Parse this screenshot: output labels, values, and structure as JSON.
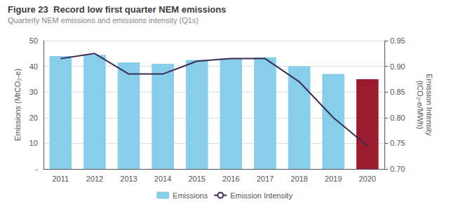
{
  "chart_data": {
    "type": "bar",
    "title": "Figure 23  Record low first quarter NEM emissions",
    "subtitle": "Quarterly NEM emissions and emissions intensity (Q1s)",
    "categories": [
      "2011",
      "2012",
      "2013",
      "2014",
      "2015",
      "2016",
      "2017",
      "2018",
      "2019",
      "2020"
    ],
    "ylabel": "Emissions (MtCO₂-e)",
    "y2label": "Emission Intensity\n(tCO₂-e/MWh)",
    "series": [
      {
        "name": "Emissions",
        "type": "bar",
        "color": "#87CEEB",
        "colors": [
          "#87CEEB",
          "#87CEEB",
          "#87CEEB",
          "#87CEEB",
          "#87CEEB",
          "#87CEEB",
          "#87CEEB",
          "#87CEEB",
          "#87CEEB",
          "#9B1C2E"
        ],
        "values": [
          44.0,
          44.5,
          41.5,
          41.0,
          42.5,
          43.0,
          43.5,
          40.0,
          37.0,
          35.0
        ]
      },
      {
        "name": "Emission Intensity",
        "type": "line",
        "axis": "y2",
        "color": "#3d2b56",
        "values": [
          0.915,
          0.925,
          0.885,
          0.885,
          0.91,
          0.915,
          0.915,
          0.87,
          0.8,
          0.745
        ]
      }
    ],
    "ylim": [
      0,
      50
    ],
    "yticks": [
      {
        "value": 0,
        "label": "-"
      },
      10,
      20,
      30,
      40,
      50
    ],
    "y2lim": [
      0.7,
      0.95
    ],
    "y2ticks": [
      {
        "value": 0.7,
        "label": "0.70"
      },
      0.75,
      {
        "value": 0.8,
        "label": "0.80"
      },
      0.85,
      {
        "value": 0.9,
        "label": "0.90"
      },
      0.95
    ],
    "grid": true,
    "legend": "bottom"
  }
}
